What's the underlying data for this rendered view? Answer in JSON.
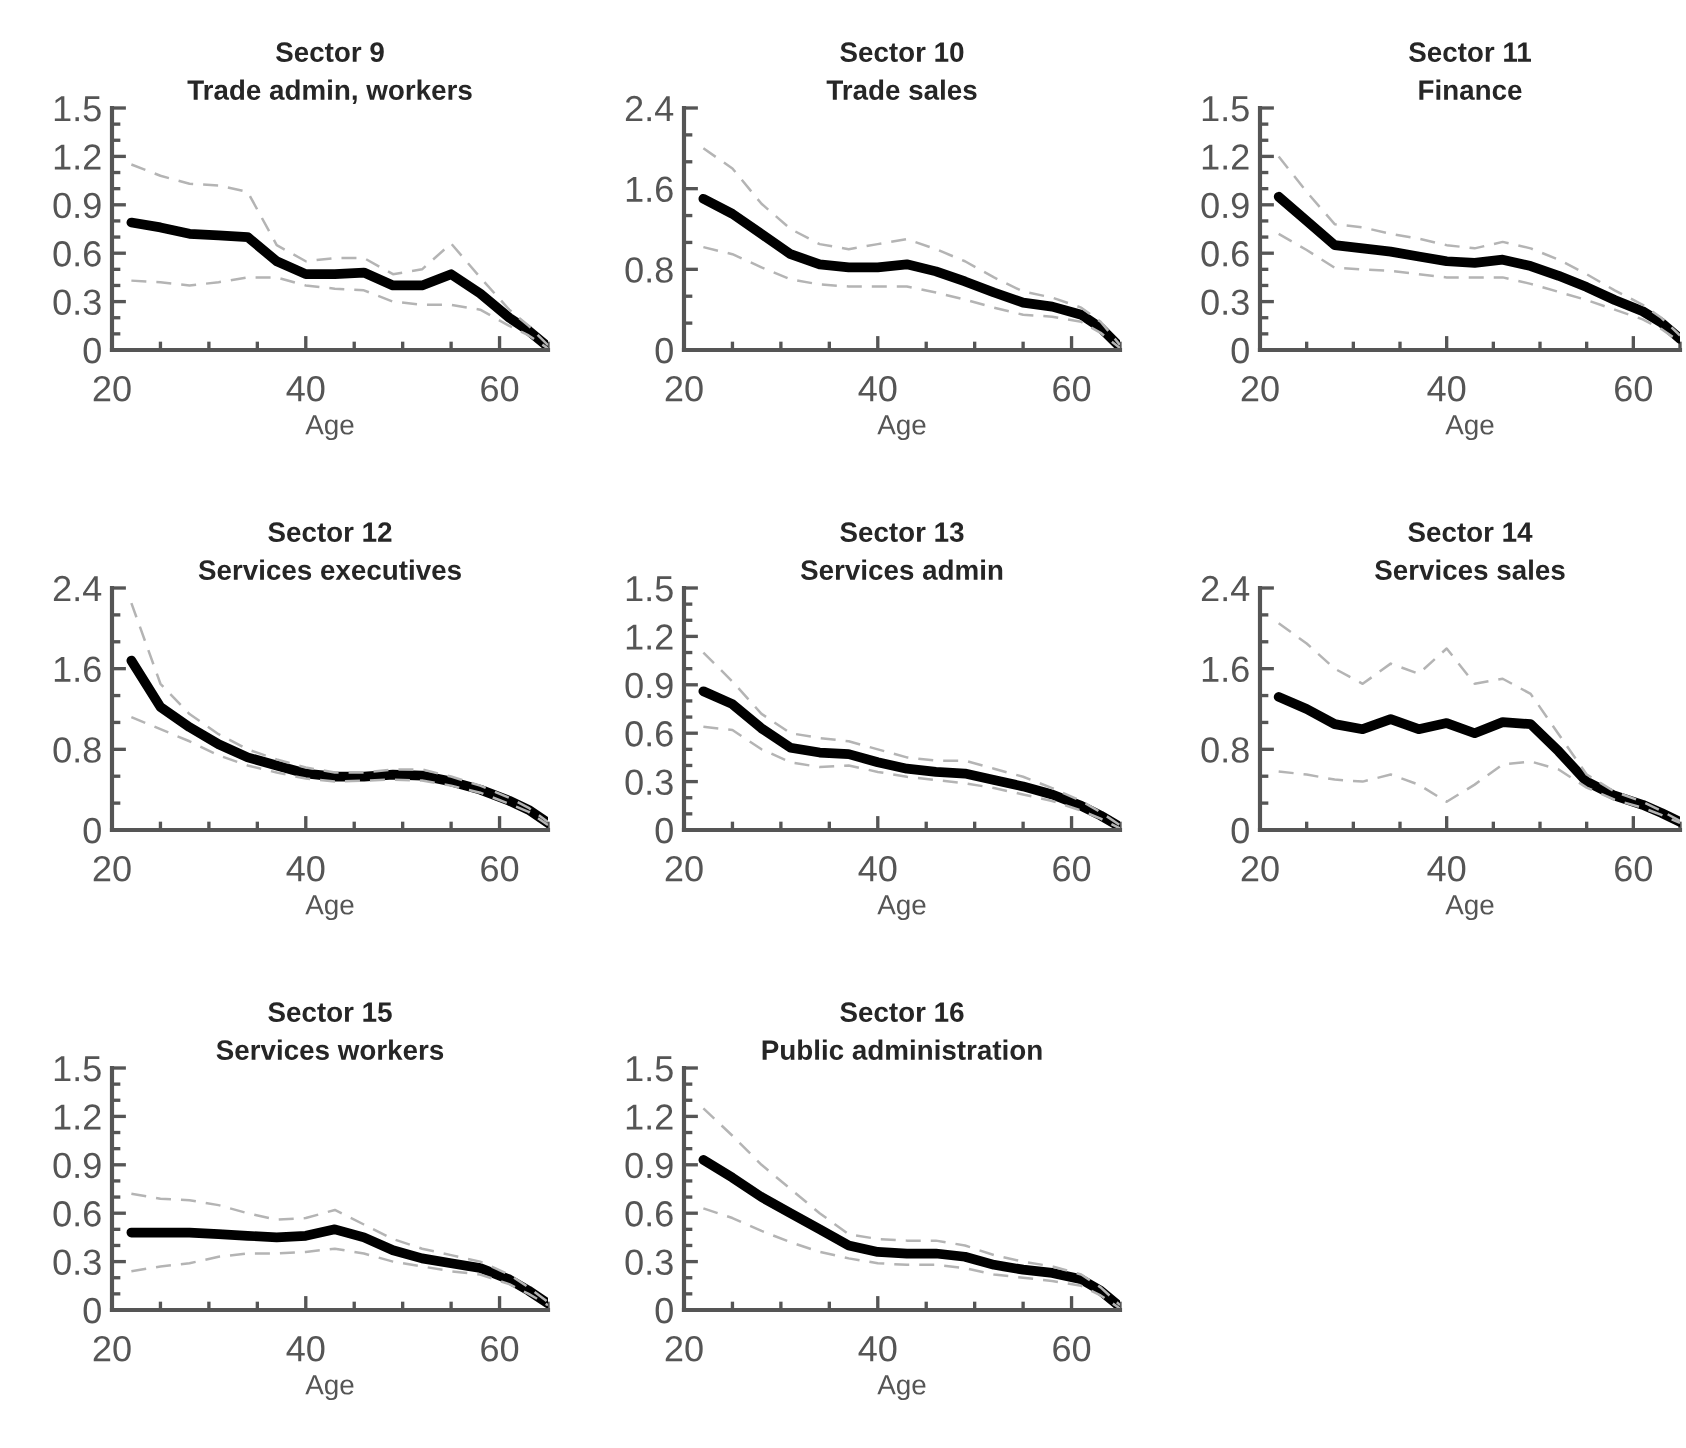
{
  "chart_data": [
    {
      "type": "line",
      "title": "Sector 9",
      "subtitle": "Trade admin, workers",
      "xlabel": "Age",
      "xlim": [
        20,
        65
      ],
      "xticks": [
        20,
        40,
        60
      ],
      "ylim": [
        0,
        1.5
      ],
      "yticks": [
        0,
        0.3,
        0.6,
        0.9,
        1.2,
        1.5
      ],
      "grid": false,
      "legend": false,
      "x": [
        22,
        25,
        28,
        31,
        34,
        37,
        40,
        43,
        46,
        49,
        52,
        55,
        58,
        61,
        63,
        65
      ],
      "series": [
        {
          "color": "#000000",
          "line_style": "solid",
          "values": [
            0.79,
            0.76,
            0.72,
            0.71,
            0.7,
            0.55,
            0.47,
            0.47,
            0.48,
            0.4,
            0.4,
            0.47,
            0.35,
            0.2,
            0.12,
            0.02
          ]
        },
        {
          "color": "#b4b4b4",
          "line_style": "dashed",
          "values": [
            1.15,
            1.08,
            1.03,
            1.02,
            0.98,
            0.65,
            0.55,
            0.57,
            0.57,
            0.47,
            0.5,
            0.66,
            0.45,
            0.25,
            0.15,
            0.03
          ]
        },
        {
          "color": "#b4b4b4",
          "line_style": "dashed",
          "values": [
            0.43,
            0.42,
            0.4,
            0.42,
            0.45,
            0.45,
            0.4,
            0.38,
            0.37,
            0.3,
            0.28,
            0.28,
            0.25,
            0.15,
            0.09,
            0.01
          ]
        }
      ]
    },
    {
      "type": "line",
      "title": "Sector 10",
      "subtitle": "Trade sales",
      "xlabel": "Age",
      "xlim": [
        20,
        65
      ],
      "xticks": [
        20,
        40,
        60
      ],
      "ylim": [
        0,
        2.4
      ],
      "yticks": [
        0,
        0.8,
        1.6,
        2.4
      ],
      "grid": false,
      "legend": false,
      "x": [
        22,
        25,
        28,
        31,
        34,
        37,
        40,
        43,
        46,
        49,
        52,
        55,
        58,
        61,
        63,
        65
      ],
      "series": [
        {
          "color": "#000000",
          "line_style": "solid",
          "values": [
            1.5,
            1.35,
            1.15,
            0.95,
            0.85,
            0.82,
            0.82,
            0.85,
            0.78,
            0.68,
            0.57,
            0.47,
            0.43,
            0.35,
            0.22,
            0.03
          ]
        },
        {
          "color": "#b4b4b4",
          "line_style": "dashed",
          "values": [
            2.0,
            1.8,
            1.45,
            1.2,
            1.05,
            1.0,
            1.05,
            1.1,
            1.0,
            0.88,
            0.72,
            0.58,
            0.52,
            0.42,
            0.28,
            0.05
          ]
        },
        {
          "color": "#b4b4b4",
          "line_style": "dashed",
          "values": [
            1.02,
            0.95,
            0.82,
            0.7,
            0.65,
            0.63,
            0.63,
            0.63,
            0.57,
            0.5,
            0.42,
            0.35,
            0.33,
            0.28,
            0.17,
            0.02
          ]
        }
      ]
    },
    {
      "type": "line",
      "title": "Sector 11",
      "subtitle": "Finance",
      "xlabel": "Age",
      "xlim": [
        20,
        65
      ],
      "xticks": [
        20,
        40,
        60
      ],
      "ylim": [
        0,
        1.5
      ],
      "yticks": [
        0,
        0.3,
        0.6,
        0.9,
        1.2,
        1.5
      ],
      "grid": false,
      "legend": false,
      "x": [
        22,
        25,
        28,
        31,
        34,
        37,
        40,
        43,
        46,
        49,
        52,
        55,
        58,
        61,
        63,
        65
      ],
      "series": [
        {
          "color": "#000000",
          "line_style": "solid",
          "values": [
            0.95,
            0.8,
            0.65,
            0.63,
            0.61,
            0.58,
            0.55,
            0.54,
            0.56,
            0.52,
            0.46,
            0.39,
            0.31,
            0.24,
            0.17,
            0.07
          ]
        },
        {
          "color": "#b4b4b4",
          "line_style": "dashed",
          "values": [
            1.2,
            0.98,
            0.78,
            0.76,
            0.72,
            0.69,
            0.65,
            0.63,
            0.67,
            0.63,
            0.56,
            0.47,
            0.37,
            0.28,
            0.2,
            0.09
          ]
        },
        {
          "color": "#b4b4b4",
          "line_style": "dashed",
          "values": [
            0.72,
            0.62,
            0.51,
            0.5,
            0.49,
            0.47,
            0.45,
            0.45,
            0.45,
            0.41,
            0.36,
            0.31,
            0.25,
            0.19,
            0.13,
            0.05
          ]
        }
      ]
    },
    {
      "type": "line",
      "title": "Sector 12",
      "subtitle": "Services executives",
      "xlabel": "Age",
      "xlim": [
        20,
        65
      ],
      "xticks": [
        20,
        40,
        60
      ],
      "ylim": [
        0,
        2.4
      ],
      "yticks": [
        0,
        0.8,
        1.6,
        2.4
      ],
      "grid": false,
      "legend": false,
      "x": [
        22,
        25,
        28,
        31,
        34,
        37,
        40,
        43,
        46,
        49,
        52,
        55,
        58,
        61,
        63,
        65
      ],
      "series": [
        {
          "color": "#000000",
          "line_style": "solid",
          "values": [
            1.68,
            1.22,
            1.02,
            0.85,
            0.72,
            0.64,
            0.56,
            0.53,
            0.53,
            0.55,
            0.54,
            0.48,
            0.4,
            0.29,
            0.2,
            0.07
          ]
        },
        {
          "color": "#b4b4b4",
          "line_style": "dashed",
          "values": [
            2.25,
            1.45,
            1.15,
            0.95,
            0.8,
            0.7,
            0.62,
            0.57,
            0.57,
            0.6,
            0.6,
            0.53,
            0.44,
            0.32,
            0.22,
            0.08
          ]
        },
        {
          "color": "#b4b4b4",
          "line_style": "dashed",
          "values": [
            1.12,
            1.0,
            0.88,
            0.74,
            0.64,
            0.57,
            0.51,
            0.48,
            0.49,
            0.5,
            0.49,
            0.44,
            0.37,
            0.26,
            0.18,
            0.05
          ]
        }
      ]
    },
    {
      "type": "line",
      "title": "Sector 13",
      "subtitle": "Services admin",
      "xlabel": "Age",
      "xlim": [
        20,
        65
      ],
      "xticks": [
        20,
        40,
        60
      ],
      "ylim": [
        0,
        1.5
      ],
      "yticks": [
        0,
        0.3,
        0.6,
        0.9,
        1.2,
        1.5
      ],
      "grid": false,
      "legend": false,
      "x": [
        22,
        25,
        28,
        31,
        34,
        37,
        40,
        43,
        46,
        49,
        52,
        55,
        58,
        61,
        63,
        65
      ],
      "series": [
        {
          "color": "#000000",
          "line_style": "solid",
          "values": [
            0.86,
            0.78,
            0.63,
            0.51,
            0.48,
            0.47,
            0.42,
            0.38,
            0.36,
            0.35,
            0.31,
            0.27,
            0.22,
            0.15,
            0.09,
            0.02
          ]
        },
        {
          "color": "#b4b4b4",
          "line_style": "dashed",
          "values": [
            1.1,
            0.92,
            0.72,
            0.6,
            0.57,
            0.55,
            0.5,
            0.45,
            0.43,
            0.43,
            0.38,
            0.33,
            0.26,
            0.18,
            0.11,
            0.03
          ]
        },
        {
          "color": "#b4b4b4",
          "line_style": "dashed",
          "values": [
            0.64,
            0.62,
            0.5,
            0.42,
            0.39,
            0.4,
            0.36,
            0.33,
            0.31,
            0.29,
            0.26,
            0.22,
            0.18,
            0.12,
            0.07,
            0.01
          ]
        }
      ]
    },
    {
      "type": "line",
      "title": "Sector 14",
      "subtitle": "Services sales",
      "xlabel": "Age",
      "xlim": [
        20,
        65
      ],
      "xticks": [
        20,
        40,
        60
      ],
      "ylim": [
        0,
        2.4
      ],
      "yticks": [
        0,
        0.8,
        1.6,
        2.4
      ],
      "grid": false,
      "legend": false,
      "x": [
        22,
        25,
        28,
        31,
        34,
        37,
        40,
        43,
        46,
        49,
        52,
        55,
        58,
        61,
        63,
        65
      ],
      "series": [
        {
          "color": "#000000",
          "line_style": "solid",
          "values": [
            1.32,
            1.2,
            1.05,
            1.0,
            1.1,
            1.0,
            1.06,
            0.96,
            1.07,
            1.05,
            0.78,
            0.48,
            0.34,
            0.25,
            0.17,
            0.08
          ]
        },
        {
          "color": "#b4b4b4",
          "line_style": "dashed",
          "values": [
            2.05,
            1.85,
            1.6,
            1.45,
            1.65,
            1.55,
            1.8,
            1.45,
            1.5,
            1.35,
            0.95,
            0.55,
            0.38,
            0.28,
            0.19,
            0.09
          ]
        },
        {
          "color": "#b4b4b4",
          "line_style": "dashed",
          "values": [
            0.58,
            0.55,
            0.5,
            0.48,
            0.55,
            0.45,
            0.28,
            0.45,
            0.65,
            0.68,
            0.6,
            0.42,
            0.3,
            0.22,
            0.15,
            0.07
          ]
        }
      ]
    },
    {
      "type": "line",
      "title": "Sector 15",
      "subtitle": "Services workers",
      "xlabel": "Age",
      "xlim": [
        20,
        65
      ],
      "xticks": [
        20,
        40,
        60
      ],
      "ylim": [
        0,
        1.5
      ],
      "yticks": [
        0,
        0.3,
        0.6,
        0.9,
        1.2,
        1.5
      ],
      "grid": false,
      "legend": false,
      "x": [
        22,
        25,
        28,
        31,
        34,
        37,
        40,
        43,
        46,
        49,
        52,
        55,
        58,
        61,
        63,
        65
      ],
      "series": [
        {
          "color": "#000000",
          "line_style": "solid",
          "values": [
            0.48,
            0.48,
            0.48,
            0.47,
            0.46,
            0.45,
            0.46,
            0.5,
            0.45,
            0.37,
            0.32,
            0.29,
            0.26,
            0.19,
            0.12,
            0.04
          ]
        },
        {
          "color": "#b4b4b4",
          "line_style": "dashed",
          "values": [
            0.72,
            0.69,
            0.68,
            0.65,
            0.6,
            0.56,
            0.57,
            0.62,
            0.53,
            0.44,
            0.38,
            0.34,
            0.3,
            0.22,
            0.14,
            0.05
          ]
        },
        {
          "color": "#b4b4b4",
          "line_style": "dashed",
          "values": [
            0.24,
            0.27,
            0.29,
            0.33,
            0.35,
            0.35,
            0.36,
            0.38,
            0.35,
            0.3,
            0.27,
            0.24,
            0.22,
            0.16,
            0.1,
            0.03
          ]
        }
      ]
    },
    {
      "type": "line",
      "title": "Sector 16",
      "subtitle": "Public administration",
      "xlabel": "Age",
      "xlim": [
        20,
        65
      ],
      "xticks": [
        20,
        40,
        60
      ],
      "ylim": [
        0,
        1.5
      ],
      "yticks": [
        0,
        0.3,
        0.6,
        0.9,
        1.2,
        1.5
      ],
      "grid": false,
      "legend": false,
      "x": [
        22,
        25,
        28,
        31,
        34,
        37,
        40,
        43,
        46,
        49,
        52,
        55,
        58,
        61,
        63,
        65
      ],
      "series": [
        {
          "color": "#000000",
          "line_style": "solid",
          "values": [
            0.93,
            0.82,
            0.7,
            0.6,
            0.5,
            0.4,
            0.36,
            0.35,
            0.35,
            0.33,
            0.28,
            0.25,
            0.23,
            0.19,
            0.12,
            0.02
          ]
        },
        {
          "color": "#b4b4b4",
          "line_style": "dashed",
          "values": [
            1.25,
            1.08,
            0.9,
            0.75,
            0.6,
            0.47,
            0.44,
            0.43,
            0.43,
            0.4,
            0.34,
            0.3,
            0.27,
            0.22,
            0.14,
            0.03
          ]
        },
        {
          "color": "#b4b4b4",
          "line_style": "dashed",
          "values": [
            0.63,
            0.57,
            0.49,
            0.42,
            0.36,
            0.32,
            0.29,
            0.28,
            0.28,
            0.26,
            0.22,
            0.2,
            0.18,
            0.15,
            0.09,
            0.01
          ]
        }
      ]
    }
  ]
}
